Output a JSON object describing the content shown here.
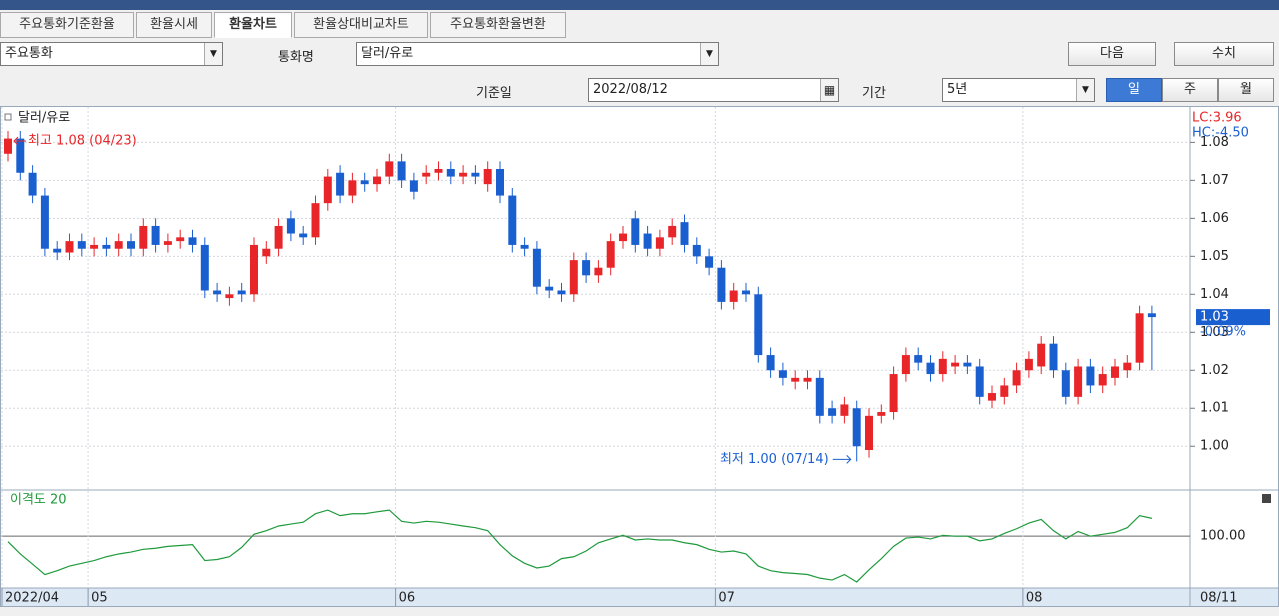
{
  "tabs": [
    "주요통화기준환율",
    "환율시세",
    "환율차트",
    "환율상대비교차트",
    "주요통화환율변환"
  ],
  "toolbar": {
    "group_select": "주요통화",
    "currency_label": "통화명",
    "currency_select": "달러/유로",
    "next_button": "다음",
    "values_button": "수치",
    "date_label": "기준일",
    "date": "2022/08/12",
    "period_label": "기간",
    "period_select": "5년",
    "interval_buttons": [
      "일",
      "주",
      "월"
    ]
  },
  "chart_data": {
    "type": "candlestick",
    "legend": "달러/유로",
    "up_color": "#e8262a",
    "down_color": "#1a5fd0",
    "grid": true,
    "categories": [
      "2022/04",
      null,
      null,
      null,
      null,
      null,
      null,
      "05",
      null,
      null,
      null,
      null,
      null,
      null,
      null,
      null,
      null,
      null,
      null,
      null,
      null,
      null,
      null,
      null,
      null,
      null,
      null,
      null,
      null,
      null,
      null,
      null,
      "06",
      null,
      null,
      null,
      null,
      null,
      null,
      null,
      null,
      null,
      null,
      null,
      null,
      null,
      null,
      null,
      null,
      null,
      null,
      null,
      null,
      null,
      null,
      null,
      null,
      null,
      "07",
      null,
      null,
      null,
      null,
      null,
      null,
      null,
      null,
      null,
      null,
      null,
      null,
      null,
      null,
      null,
      null,
      null,
      null,
      null,
      null,
      null,
      null,
      null,
      null,
      "08",
      null,
      null,
      null,
      null,
      null,
      null,
      null,
      null,
      null,
      null
    ],
    "open": [
      1.077,
      1.081,
      1.072,
      1.066,
      1.052,
      1.051,
      1.054,
      1.052,
      1.053,
      1.052,
      1.054,
      1.052,
      1.058,
      1.053,
      1.054,
      1.055,
      1.053,
      1.041,
      1.039,
      1.041,
      1.04,
      1.05,
      1.052,
      1.06,
      1.056,
      1.055,
      1.064,
      1.072,
      1.066,
      1.07,
      1.069,
      1.071,
      1.075,
      1.07,
      1.071,
      1.072,
      1.073,
      1.071,
      1.072,
      1.069,
      1.073,
      1.066,
      1.053,
      1.052,
      1.042,
      1.041,
      1.04,
      1.049,
      1.045,
      1.047,
      1.054,
      1.06,
      1.056,
      1.052,
      1.055,
      1.059,
      1.053,
      1.05,
      1.047,
      1.038,
      1.041,
      1.04,
      1.024,
      1.02,
      1.017,
      1.017,
      1.018,
      1.01,
      1.008,
      1.01,
      0.999,
      1.008,
      1.009,
      1.019,
      1.024,
      1.022,
      1.019,
      1.021,
      1.022,
      1.021,
      1.012,
      1.013,
      1.016,
      1.02,
      1.021,
      1.027,
      1.02,
      1.013,
      1.021,
      1.016,
      1.018,
      1.02,
      1.022,
      1.035
    ],
    "high": [
      1.083,
      1.083,
      1.074,
      1.068,
      1.054,
      1.056,
      1.056,
      1.055,
      1.055,
      1.056,
      1.056,
      1.06,
      1.06,
      1.056,
      1.057,
      1.057,
      1.055,
      1.043,
      1.042,
      1.043,
      1.055,
      1.054,
      1.06,
      1.062,
      1.058,
      1.066,
      1.073,
      1.074,
      1.072,
      1.072,
      1.073,
      1.077,
      1.077,
      1.072,
      1.074,
      1.075,
      1.075,
      1.074,
      1.074,
      1.075,
      1.075,
      1.068,
      1.055,
      1.054,
      1.044,
      1.043,
      1.051,
      1.051,
      1.049,
      1.056,
      1.058,
      1.062,
      1.058,
      1.057,
      1.06,
      1.061,
      1.055,
      1.052,
      1.049,
      1.043,
      1.043,
      1.042,
      1.026,
      1.022,
      1.02,
      1.02,
      1.02,
      1.012,
      1.013,
      1.012,
      1.01,
      1.011,
      1.021,
      1.026,
      1.026,
      1.024,
      1.025,
      1.024,
      1.024,
      1.023,
      1.016,
      1.018,
      1.022,
      1.025,
      1.029,
      1.029,
      1.022,
      1.023,
      1.023,
      1.021,
      1.023,
      1.024,
      1.037,
      1.037
    ],
    "low": [
      1.075,
      1.07,
      1.064,
      1.05,
      1.049,
      1.049,
      1.05,
      1.05,
      1.05,
      1.05,
      1.05,
      1.05,
      1.051,
      1.051,
      1.052,
      1.051,
      1.039,
      1.038,
      1.037,
      1.038,
      1.038,
      1.048,
      1.05,
      1.054,
      1.053,
      1.053,
      1.062,
      1.064,
      1.064,
      1.067,
      1.067,
      1.069,
      1.068,
      1.065,
      1.069,
      1.07,
      1.069,
      1.069,
      1.069,
      1.067,
      1.064,
      1.051,
      1.05,
      1.04,
      1.039,
      1.038,
      1.038,
      1.043,
      1.043,
      1.045,
      1.052,
      1.051,
      1.05,
      1.05,
      1.053,
      1.051,
      1.048,
      1.045,
      1.036,
      1.036,
      1.038,
      1.022,
      1.018,
      1.016,
      1.015,
      1.015,
      1.006,
      1.006,
      1.006,
      0.996,
      0.997,
      1.006,
      1.007,
      1.017,
      1.02,
      1.017,
      1.017,
      1.019,
      1.019,
      1.011,
      1.01,
      1.011,
      1.014,
      1.018,
      1.019,
      1.018,
      1.011,
      1.011,
      1.014,
      1.014,
      1.016,
      1.018,
      1.02,
      1.02
    ],
    "close": [
      1.081,
      1.072,
      1.066,
      1.052,
      1.051,
      1.054,
      1.052,
      1.053,
      1.052,
      1.054,
      1.052,
      1.058,
      1.053,
      1.054,
      1.055,
      1.053,
      1.041,
      1.04,
      1.04,
      1.04,
      1.053,
      1.052,
      1.058,
      1.056,
      1.055,
      1.064,
      1.071,
      1.066,
      1.07,
      1.069,
      1.071,
      1.075,
      1.07,
      1.067,
      1.072,
      1.073,
      1.071,
      1.072,
      1.071,
      1.073,
      1.066,
      1.053,
      1.052,
      1.042,
      1.041,
      1.04,
      1.049,
      1.045,
      1.047,
      1.054,
      1.056,
      1.053,
      1.052,
      1.055,
      1.058,
      1.053,
      1.05,
      1.047,
      1.038,
      1.041,
      1.04,
      1.024,
      1.02,
      1.018,
      1.018,
      1.018,
      1.008,
      1.008,
      1.011,
      1.0,
      1.008,
      1.009,
      1.019,
      1.024,
      1.022,
      1.019,
      1.023,
      1.022,
      1.021,
      1.013,
      1.014,
      1.016,
      1.02,
      1.023,
      1.027,
      1.02,
      1.013,
      1.021,
      1.016,
      1.019,
      1.021,
      1.022,
      1.035,
      1.034
    ],
    "ylim": [
      0.989,
      1.088
    ],
    "yticks": [
      {
        "value": 1,
        "label": "1.00"
      },
      1.01,
      1.02,
      1.03,
      1.04,
      1.05,
      1.06,
      1.07,
      1.08
    ],
    "high_label": "최고 1.08 (04/23)",
    "low_label": "최저 1.00 (07/14)",
    "lc_label": "LC:3.96",
    "hc_label": "HC:-4.50",
    "last_label": "1.03",
    "change_label": "-0.09%",
    "end_date_label": "08/11",
    "indicator": {
      "name": "이격도 20",
      "color": "#1e9a3c",
      "values": [
        99.68,
        98.97,
        98.38,
        97.78,
        98.0,
        98.27,
        98.43,
        98.59,
        98.81,
        98.97,
        99.08,
        99.24,
        99.3,
        99.41,
        99.46,
        99.51,
        98.59,
        98.65,
        98.81,
        99.35,
        100.11,
        100.32,
        100.59,
        100.7,
        100.81,
        101.3,
        101.51,
        101.19,
        101.3,
        101.3,
        101.41,
        101.51,
        100.86,
        100.76,
        100.86,
        100.81,
        100.7,
        100.59,
        100.49,
        100.32,
        99.51,
        98.86,
        98.43,
        98.16,
        98.27,
        98.7,
        98.81,
        99.14,
        99.62,
        99.84,
        100.05,
        99.78,
        99.84,
        99.78,
        99.78,
        99.62,
        99.51,
        99.24,
        99.08,
        99.14,
        98.97,
        98.27,
        98.0,
        97.89,
        97.84,
        97.78,
        97.57,
        97.46,
        97.78,
        97.35,
        98.05,
        98.7,
        99.41,
        99.89,
        99.95,
        99.84,
        100.05,
        100.0,
        100.0,
        99.73,
        99.84,
        100.16,
        100.43,
        100.76,
        100.97,
        100.32,
        99.84,
        100.27,
        100.0,
        100.11,
        100.22,
        100.49,
        101.19,
        101.03
      ],
      "ylim": [
        97,
        102.5
      ],
      "yticks": [
        {
          "value": 100,
          "label": "100.00"
        }
      ]
    }
  }
}
